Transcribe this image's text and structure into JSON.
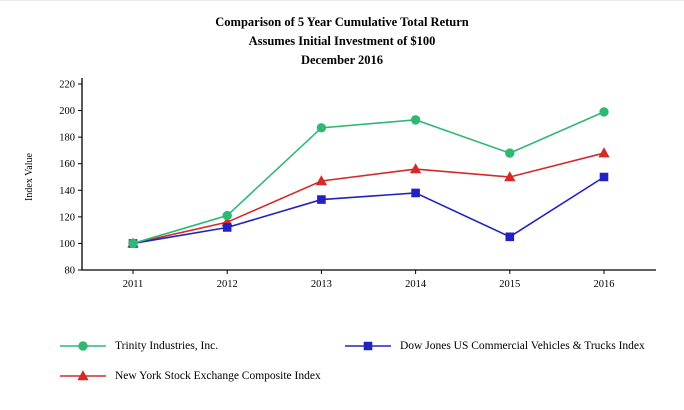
{
  "chart_data": {
    "type": "line",
    "title": "Comparison of 5 Year Cumulative Total Return",
    "subtitle": "Assumes Initial Investment of $100",
    "subtitle2": "December 2016",
    "ylabel": "Index Value",
    "xlabel": "",
    "categories": [
      "2011",
      "2012",
      "2013",
      "2014",
      "2015",
      "2016"
    ],
    "ylim": [
      80,
      220
    ],
    "ytick_step": 20,
    "grid": false,
    "legend_position": "bottom",
    "axis_color": "#000000",
    "series": [
      {
        "name": "Trinity Industries, Inc.",
        "color": "#2eb873",
        "marker": "circle",
        "values": [
          100,
          121,
          187,
          193,
          168,
          199
        ]
      },
      {
        "name": "Dow Jones US Commercial Vehicles & Trucks Index",
        "color": "#2222c0",
        "marker": "square",
        "values": [
          100,
          112,
          133,
          138,
          105,
          150
        ]
      },
      {
        "name": "New York Stock Exchange Composite Index",
        "color": "#d42a2a",
        "marker": "triangle",
        "values": [
          100,
          116,
          147,
          156,
          150,
          168
        ]
      }
    ]
  }
}
